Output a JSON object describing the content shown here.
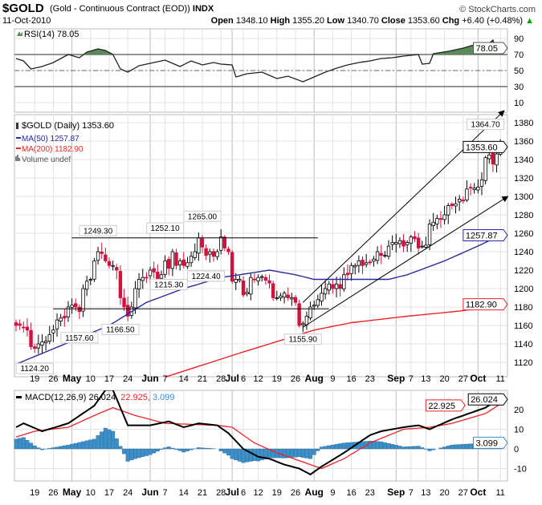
{
  "header": {
    "symbol": "$GOLD",
    "description": "(Gold - Continuous Contract (EOD))",
    "exchange": "INDX",
    "brand": "© StockCharts.com",
    "date": "11-Oct-2010",
    "open_label": "Open",
    "open": "1348.10",
    "high_label": "High",
    "high": "1355.20",
    "low_label": "Low",
    "low": "1340.70",
    "close_label": "Close",
    "close": "1353.60",
    "chg_label": "Chg",
    "chg": "+6.40 (+0.48%)",
    "chg_arrow": "▲"
  },
  "colors": {
    "up_candle": "#ffffff",
    "down_candle": "#d2113d",
    "ma50": "#2a2aa0",
    "ma200": "#ee2222",
    "rsi_fill": "#5a8a5a",
    "macd": "#000000",
    "signal": "#ee2222",
    "histogram": "#3d8fc8"
  },
  "chart_data": [
    {
      "type": "line",
      "title": "RSI(14) 78.05",
      "legend": "RSI(14) 78.05",
      "ylim": [
        0,
        100
      ],
      "yticks": [
        90,
        70,
        50,
        30,
        10
      ],
      "last_value_label": "78.05",
      "overbought": 70,
      "oversold": 30,
      "midline": 50,
      "points": [
        [
          0,
          65
        ],
        [
          2,
          62
        ],
        [
          4,
          52
        ],
        [
          7,
          55
        ],
        [
          10,
          60
        ],
        [
          14,
          70
        ],
        [
          17,
          66
        ],
        [
          19,
          73
        ],
        [
          22,
          77
        ],
        [
          24,
          75
        ],
        [
          26,
          70
        ],
        [
          28,
          52
        ],
        [
          30,
          48
        ],
        [
          33,
          56
        ],
        [
          37,
          60
        ],
        [
          40,
          63
        ],
        [
          44,
          55
        ],
        [
          47,
          62
        ],
        [
          50,
          57
        ],
        [
          53,
          60
        ],
        [
          55,
          58
        ],
        [
          58,
          57
        ],
        [
          59,
          42
        ],
        [
          62,
          46
        ],
        [
          66,
          48
        ],
        [
          70,
          40
        ],
        [
          73,
          43
        ],
        [
          77,
          36
        ],
        [
          80,
          42
        ],
        [
          83,
          48
        ],
        [
          86,
          53
        ],
        [
          89,
          57
        ],
        [
          92,
          60
        ],
        [
          95,
          62
        ],
        [
          98,
          65
        ],
        [
          101,
          66
        ],
        [
          104,
          68
        ],
        [
          108,
          70
        ],
        [
          109,
          58
        ],
        [
          111,
          59
        ],
        [
          112,
          71
        ],
        [
          116,
          74
        ],
        [
          120,
          78
        ],
        [
          123,
          82
        ],
        [
          126,
          80
        ],
        [
          128,
          88
        ],
        [
          129,
          74
        ],
        [
          130,
          78.05
        ]
      ]
    },
    {
      "type": "candlestick",
      "title": "$GOLD (Daily) 1353.60",
      "legend": [
        "$GOLD (Daily) 1353.60",
        "MA(50) 1257.87",
        "MA(200) 1182.90",
        "Volume undef"
      ],
      "start_date": "2010-04-12",
      "ylim": [
        1105,
        1390
      ],
      "yticks": [
        1380,
        1360,
        1340,
        1320,
        1300,
        1280,
        1260,
        1240,
        1220,
        1200,
        1180,
        1160,
        1140,
        1120
      ],
      "closes": [
        1160,
        1160,
        1158,
        1155,
        1137,
        1135,
        1140,
        1142,
        1143,
        1150,
        1155,
        1166,
        1168,
        1168,
        1180,
        1182,
        1180,
        1175,
        1200,
        1208,
        1210,
        1230,
        1240,
        1238,
        1230,
        1225,
        1225,
        1220,
        1190,
        1180,
        1170,
        1180,
        1200,
        1210,
        1212,
        1212,
        1220,
        1218,
        1210,
        1215,
        1230,
        1222,
        1240,
        1225,
        1230,
        1225,
        1228,
        1235,
        1240,
        1255,
        1245,
        1236,
        1240,
        1235,
        1240,
        1256,
        1244,
        1240,
        1208,
        1210,
        1210,
        1193,
        1196,
        1212,
        1210,
        1212,
        1213,
        1209,
        1206,
        1190,
        1190,
        1192,
        1195,
        1190,
        1190,
        1185,
        1160,
        1162,
        1170,
        1180,
        1182,
        1188,
        1195,
        1200,
        1205,
        1200,
        1205,
        1200,
        1215,
        1215,
        1225,
        1225,
        1230,
        1225,
        1228,
        1228,
        1232,
        1240,
        1236,
        1236,
        1246,
        1250,
        1250,
        1252,
        1246,
        1250,
        1256,
        1254,
        1244,
        1246,
        1247,
        1270,
        1272,
        1276,
        1275,
        1280,
        1290,
        1290,
        1292,
        1297,
        1295,
        1308,
        1309,
        1309,
        1310,
        1318,
        1342,
        1345,
        1335,
        1346,
        1353.6
      ],
      "ma50": [
        [
          0,
          1118
        ],
        [
          15,
          1143
        ],
        [
          25,
          1160
        ],
        [
          35,
          1185
        ],
        [
          45,
          1200
        ],
        [
          55,
          1212
        ],
        [
          60,
          1215
        ],
        [
          68,
          1220
        ],
        [
          75,
          1215
        ],
        [
          80,
          1210
        ],
        [
          100,
          1210
        ],
        [
          105,
          1215
        ],
        [
          115,
          1230
        ],
        [
          125,
          1248
        ],
        [
          130,
          1257.87
        ]
      ],
      "ma200": [
        [
          40,
          1104
        ],
        [
          60,
          1130
        ],
        [
          80,
          1155
        ],
        [
          90,
          1163
        ],
        [
          105,
          1170
        ],
        [
          120,
          1176
        ],
        [
          130,
          1182.9
        ]
      ],
      "value_labels": {
        "close": "1353.60",
        "ma50": "1257.87",
        "ma200": "1182.90"
      },
      "annotations": [
        {
          "text": "1249.30",
          "i": 22,
          "v": 1249.3,
          "dir": "up"
        },
        {
          "text": "1252.10",
          "i": 40,
          "v": 1252.1,
          "dir": "up"
        },
        {
          "text": "1265.00",
          "i": 50,
          "v": 1265.0,
          "dir": "up"
        },
        {
          "text": "1215.30",
          "i": 41,
          "v": 1215.3,
          "dir": "down"
        },
        {
          "text": "1224.40",
          "i": 51,
          "v": 1224.4,
          "dir": "down"
        },
        {
          "text": "1157.60",
          "i": 17,
          "v": 1157.6,
          "dir": "down"
        },
        {
          "text": "1166.50",
          "i": 28,
          "v": 1166.5,
          "dir": "down"
        },
        {
          "text": "1155.90",
          "i": 77,
          "v": 1155.9,
          "dir": "down"
        },
        {
          "text": "1124.20",
          "i": 5,
          "v": 1124.2,
          "dir": "down"
        },
        {
          "text": "1364.70",
          "i": 126,
          "v": 1364.7,
          "dir": "up"
        }
      ],
      "trendlines": [
        {
          "name": "resistance",
          "from": [
            15,
            1255
          ],
          "to": [
            81,
            1255
          ],
          "arrow": false
        },
        {
          "name": "support",
          "from": [
            10,
            1178
          ],
          "to": [
            84,
            1178
          ],
          "arrow": false
        },
        {
          "name": "channel-upper",
          "from": [
            77,
            1185
          ],
          "to": [
            131,
            1393
          ],
          "arrow": true
        },
        {
          "name": "channel-lower",
          "from": [
            77,
            1158
          ],
          "to": [
            132,
            1300
          ],
          "arrow": true
        }
      ]
    },
    {
      "type": "line",
      "title": "MACD(12,26,9) 26.024, 22.925, 3.099",
      "legend": {
        "name": "MACD(12,26,9)",
        "macd": "26.024",
        "signal": "22.925",
        "hist": "3.099"
      },
      "ylim": [
        -16,
        30
      ],
      "yticks": [
        20,
        10,
        0,
        -10
      ],
      "macd": [
        [
          0,
          11
        ],
        [
          2,
          13
        ],
        [
          7,
          9
        ],
        [
          14,
          13
        ],
        [
          21,
          22
        ],
        [
          24,
          30
        ],
        [
          26,
          30
        ],
        [
          30,
          12
        ],
        [
          36,
          12
        ],
        [
          41,
          14
        ],
        [
          45,
          11
        ],
        [
          49,
          13
        ],
        [
          54,
          12
        ],
        [
          57,
          8
        ],
        [
          61,
          0
        ],
        [
          65,
          -4
        ],
        [
          68,
          -5
        ],
        [
          72,
          -8
        ],
        [
          76,
          -10
        ],
        [
          79,
          -13
        ],
        [
          82,
          -9
        ],
        [
          88,
          -2
        ],
        [
          95,
          7
        ],
        [
          98,
          9
        ],
        [
          104,
          11
        ],
        [
          108,
          12
        ],
        [
          111,
          10
        ],
        [
          117,
          15
        ],
        [
          126,
          21
        ],
        [
          130,
          26.024
        ]
      ],
      "signal": [
        [
          0,
          6
        ],
        [
          5,
          9
        ],
        [
          14,
          11
        ],
        [
          21,
          17
        ],
        [
          26,
          21
        ],
        [
          32,
          17
        ],
        [
          40,
          13
        ],
        [
          54,
          12
        ],
        [
          58,
          11
        ],
        [
          64,
          3
        ],
        [
          70,
          -2
        ],
        [
          76,
          -6
        ],
        [
          82,
          -10
        ],
        [
          88,
          -5
        ],
        [
          95,
          3
        ],
        [
          104,
          10
        ],
        [
          111,
          11
        ],
        [
          117,
          13
        ],
        [
          126,
          18
        ],
        [
          130,
          22.925
        ]
      ]
    }
  ],
  "x_axis": [
    {
      "i": 5,
      "text": "19"
    },
    {
      "i": 10,
      "text": "26"
    },
    {
      "i": 15,
      "text": "May",
      "bold": true
    },
    {
      "i": 20,
      "text": "10"
    },
    {
      "i": 25,
      "text": "17"
    },
    {
      "i": 30,
      "text": "24"
    },
    {
      "i": 36,
      "text": "Jun",
      "bold": true
    },
    {
      "i": 40,
      "text": "7"
    },
    {
      "i": 45,
      "text": "14"
    },
    {
      "i": 50,
      "text": "21"
    },
    {
      "i": 55,
      "text": "28"
    },
    {
      "i": 58,
      "text": "Jul",
      "bold": true
    },
    {
      "i": 61,
      "text": "6"
    },
    {
      "i": 65,
      "text": "12"
    },
    {
      "i": 70,
      "text": "19"
    },
    {
      "i": 75,
      "text": "26"
    },
    {
      "i": 80,
      "text": "Aug",
      "bold": true
    },
    {
      "i": 85,
      "text": "9"
    },
    {
      "i": 90,
      "text": "16"
    },
    {
      "i": 95,
      "text": "23"
    },
    {
      "i": 102,
      "text": "Sep",
      "bold": true
    },
    {
      "i": 106,
      "text": "7"
    },
    {
      "i": 110,
      "text": "13"
    },
    {
      "i": 115,
      "text": "20"
    },
    {
      "i": 120,
      "text": "27"
    },
    {
      "i": 124,
      "text": "Oct",
      "bold": true
    },
    {
      "i": 130,
      "text": "11"
    }
  ]
}
